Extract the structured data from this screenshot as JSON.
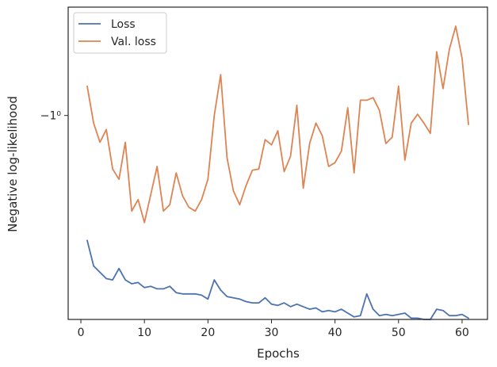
{
  "chart_data": {
    "type": "line",
    "xlabel": "Epochs",
    "ylabel": "Negative log-likelihood",
    "yscale": "symlog",
    "xlim": [
      -2.0,
      64.0
    ],
    "ylim": [
      -1.16,
      -0.915
    ],
    "x_ticks": [
      "0",
      "10",
      "20",
      "30",
      "40",
      "50",
      "60"
    ],
    "y_ticks": [
      {
        "value": -1.0,
        "label": "−1⁰"
      }
    ],
    "legend_position": "upper-left",
    "grid": false,
    "series": [
      {
        "name": "Loss",
        "color": "#4c72b0",
        "x": [
          1,
          2,
          3,
          4,
          5,
          6,
          7,
          8,
          9,
          10,
          11,
          12,
          13,
          14,
          15,
          16,
          17,
          18,
          19,
          20,
          21,
          22,
          23,
          24,
          25,
          26,
          27,
          28,
          29,
          30,
          31,
          32,
          33,
          34,
          35,
          36,
          37,
          38,
          39,
          40,
          41,
          42,
          43,
          44,
          45,
          46,
          47,
          48,
          49,
          50,
          51,
          52,
          53,
          54,
          55,
          56,
          57,
          58,
          59,
          60,
          61
        ],
        "values": [
          -1.098,
          -1.118,
          -1.123,
          -1.128,
          -1.129,
          -1.12,
          -1.129,
          -1.132,
          -1.131,
          -1.135,
          -1.134,
          -1.136,
          -1.136,
          -1.134,
          -1.139,
          -1.14,
          -1.14,
          -1.14,
          -1.141,
          -1.144,
          -1.129,
          -1.137,
          -1.142,
          -1.143,
          -1.144,
          -1.146,
          -1.147,
          -1.147,
          -1.143,
          -1.148,
          -1.149,
          -1.147,
          -1.15,
          -1.148,
          -1.15,
          -1.152,
          -1.151,
          -1.154,
          -1.153,
          -1.154,
          -1.152,
          -1.155,
          -1.158,
          -1.157,
          -1.14,
          -1.152,
          -1.157,
          -1.156,
          -1.157,
          -1.156,
          -1.155,
          -1.159,
          -1.159,
          -1.16,
          -1.16,
          -1.152,
          -1.153,
          -1.157,
          -1.157,
          -1.156,
          -1.159
        ]
      },
      {
        "name": "Val. loss",
        "color": "#dd8452",
        "x": [
          1,
          2,
          3,
          4,
          5,
          6,
          7,
          8,
          9,
          10,
          11,
          12,
          13,
          14,
          15,
          16,
          17,
          18,
          19,
          20,
          21,
          22,
          23,
          24,
          25,
          26,
          27,
          28,
          29,
          30,
          31,
          32,
          33,
          34,
          35,
          36,
          37,
          38,
          39,
          40,
          41,
          42,
          43,
          44,
          45,
          46,
          47,
          48,
          49,
          50,
          51,
          52,
          53,
          54,
          55,
          56,
          57,
          58,
          59,
          60,
          61
        ],
        "values": [
          -0.977,
          -1.006,
          -1.021,
          -1.011,
          -1.042,
          -1.05,
          -1.021,
          -1.075,
          -1.066,
          -1.084,
          -1.062,
          -1.04,
          -1.075,
          -1.07,
          -1.045,
          -1.063,
          -1.072,
          -1.075,
          -1.066,
          -1.05,
          -1.0,
          -0.968,
          -1.033,
          -1.059,
          -1.07,
          -1.055,
          -1.043,
          -1.042,
          -1.019,
          -1.023,
          -1.012,
          -1.044,
          -1.032,
          -0.992,
          -1.057,
          -1.022,
          -1.006,
          -1.016,
          -1.04,
          -1.037,
          -1.028,
          -0.994,
          -1.045,
          -0.988,
          -0.988,
          -0.986,
          -0.996,
          -1.022,
          -1.017,
          -0.977,
          -1.035,
          -1.006,
          -0.999,
          -1.006,
          -1.014,
          -0.95,
          -0.979,
          -0.948,
          -0.93,
          -0.955,
          -1.007
        ]
      }
    ]
  }
}
